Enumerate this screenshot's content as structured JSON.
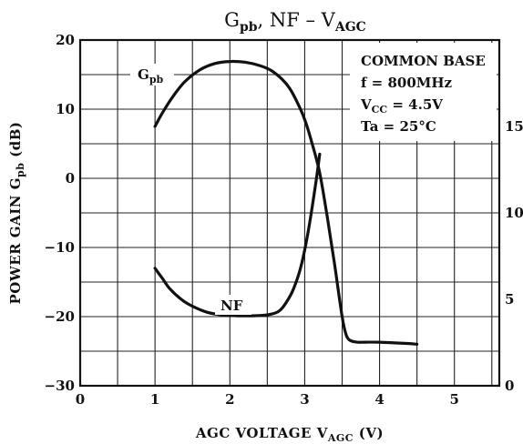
{
  "chart_data": {
    "type": "line",
    "title": {
      "main": "G",
      "main_sub": "pb",
      "rest": ", NF  –  V",
      "rest_sub": "AGC"
    },
    "xlabel": {
      "main": "AGC VOLTAGE   V",
      "sub": "AGC",
      "unit": "  (V)"
    },
    "ylabel": {
      "main": "POWER GAIN   G",
      "sub": "pb",
      "unit": "  (dB)"
    },
    "xlim": [
      0,
      5.6
    ],
    "ylim": [
      -30,
      20
    ],
    "y2lim": [
      0,
      20
    ],
    "x_ticks": [
      "0",
      "1",
      "2",
      "3",
      "4",
      "5"
    ],
    "y_ticks": [
      "20",
      "10",
      "0",
      "−10",
      "−20",
      "−30"
    ],
    "y2_ticks": [
      "15",
      "10",
      "5",
      "0"
    ],
    "grid": true,
    "series": [
      {
        "name": "G",
        "name_sub": "pb",
        "axis": "left",
        "x": [
          1.0,
          1.1,
          1.25,
          1.4,
          1.6,
          1.8,
          2.0,
          2.2,
          2.4,
          2.55,
          2.7,
          2.8,
          2.9,
          3.0,
          3.1,
          3.2,
          3.3,
          3.4,
          3.5,
          3.55,
          3.6,
          3.7,
          3.8,
          4.0,
          4.2,
          4.4,
          4.5
        ],
        "y": [
          7.5,
          9.5,
          12.0,
          14.0,
          15.7,
          16.6,
          16.9,
          16.8,
          16.3,
          15.6,
          14.3,
          13.0,
          11.0,
          8.5,
          5.0,
          0.8,
          -5.5,
          -12.5,
          -20.0,
          -22.5,
          -23.4,
          -23.7,
          -23.7,
          -23.7,
          -23.8,
          -23.9,
          -24.0
        ]
      },
      {
        "name": "NF",
        "axis": "right",
        "x": [
          1.0,
          1.1,
          1.2,
          1.35,
          1.5,
          1.7,
          1.9,
          2.1,
          2.3,
          2.5,
          2.65,
          2.75,
          2.85,
          2.95,
          3.05,
          3.15,
          3.2
        ],
        "y": [
          6.8,
          6.2,
          5.6,
          5.0,
          4.6,
          4.25,
          4.1,
          4.05,
          4.05,
          4.1,
          4.3,
          4.8,
          5.6,
          6.9,
          9.0,
          11.8,
          13.4
        ]
      }
    ],
    "legend": {
      "lines": [
        {
          "main": "COMMON BASE"
        },
        {
          "main": "f = 800MHz"
        },
        {
          "main": "V",
          "sub": "CC",
          "rest": " = 4.5V"
        },
        {
          "main": "Ta = 25°C"
        }
      ],
      "placement": "top-right"
    }
  }
}
